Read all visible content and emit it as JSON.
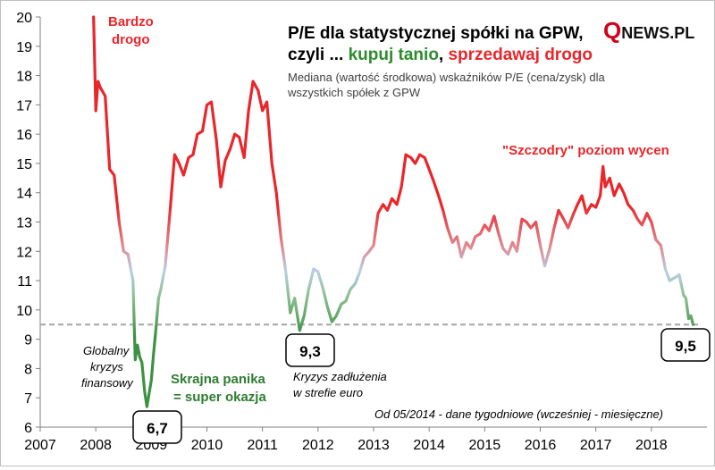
{
  "chart_data": {
    "type": "line",
    "title_line1": "P/E dla statystycznej spółki na GPW,",
    "title_line2_prefix": "czyli ... ",
    "title_line2_green": "kupuj tanio",
    "title_line2_sep": ", ",
    "title_line2_red": "sprzedawaj drogo",
    "subtitle_line1": "Mediana (wartość środkowa) wskaźników P/E (cena/zysk) dla",
    "subtitle_line2": "wszystkich spółek z GPW",
    "logo": "QNEWS.PL",
    "footnote": "Od 05/2014 - dane tygodniowe (wcześniej - miesięczne)",
    "xlabel": "",
    "ylabel": "",
    "xlim": [
      2007,
      2019
    ],
    "ylim": [
      6,
      20
    ],
    "x_ticks": [
      "2007",
      "2008",
      "2009",
      "2010",
      "2011",
      "2012",
      "2013",
      "2014",
      "2015",
      "2016",
      "2017",
      "2018"
    ],
    "y_ticks": [
      "6",
      "7",
      "8",
      "9",
      "10",
      "11",
      "12",
      "13",
      "14",
      "15",
      "16",
      "17",
      "18",
      "19",
      "20"
    ],
    "reference_line": {
      "y": 9.5,
      "style": "dashed",
      "color": "#a6a6a6"
    },
    "colors": {
      "expensive": "#e8262b",
      "neutral": "#b9cfe6",
      "cheap": "#3c9142",
      "title": "#000000",
      "logo_q": "#d0021b"
    },
    "annotations": {
      "bardzo_drogo_1": "Bardzo",
      "bardzo_drogo_2": "drogo",
      "globalny_1": "Globalny",
      "globalny_2": "kryzys",
      "globalny_3": "finansowy",
      "skrajna_1": "Skrajna panika",
      "skrajna_2": "= super okazja",
      "kryzys_1": "Kryzys zadłużenia",
      "kryzys_2": "w strefie euro",
      "szczodry": "\"Szczodry\" poziom wycen",
      "box_min_2009": "6,7",
      "box_2011": "9,3",
      "box_2018": "9,5"
    },
    "series": [
      {
        "x": [
          2007.96,
          2008.0,
          2008.04,
          2008.08,
          2008.17,
          2008.25,
          2008.33,
          2008.42,
          2008.5,
          2008.58,
          2008.67,
          2008.71,
          2008.75,
          2008.79,
          2008.83,
          2008.88,
          2008.92,
          2009.0,
          2009.04,
          2009.08,
          2009.13,
          2009.17,
          2009.25,
          2009.33,
          2009.42,
          2009.5,
          2009.58,
          2009.67,
          2009.75,
          2009.83,
          2009.92,
          2010.0,
          2010.08,
          2010.17,
          2010.25,
          2010.33,
          2010.42,
          2010.5,
          2010.58,
          2010.67,
          2010.75,
          2010.83,
          2010.92,
          2011.0,
          2011.08,
          2011.17,
          2011.25,
          2011.33,
          2011.42,
          2011.5,
          2011.58,
          2011.67,
          2011.75,
          2011.83,
          2011.92,
          2012.0,
          2012.08,
          2012.17,
          2012.25,
          2012.33,
          2012.42,
          2012.5,
          2012.58,
          2012.67,
          2012.75,
          2012.83,
          2012.92,
          2013.0,
          2013.08,
          2013.17,
          2013.25,
          2013.33,
          2013.42,
          2013.5,
          2013.58,
          2013.67,
          2013.75,
          2013.83,
          2013.92,
          2014.0,
          2014.08,
          2014.17,
          2014.25,
          2014.33,
          2014.42,
          2014.5,
          2014.58,
          2014.67,
          2014.75,
          2014.83,
          2014.92,
          2015.0,
          2015.08,
          2015.17,
          2015.25,
          2015.33,
          2015.42,
          2015.5,
          2015.58,
          2015.67,
          2015.75,
          2015.83,
          2015.92,
          2016.0,
          2016.08,
          2016.17,
          2016.25,
          2016.33,
          2016.42,
          2016.5,
          2016.58,
          2016.67,
          2016.75,
          2016.83,
          2016.92,
          2017.0,
          2017.08,
          2017.13,
          2017.17,
          2017.25,
          2017.33,
          2017.42,
          2017.5,
          2017.58,
          2017.67,
          2017.75,
          2017.83,
          2017.92,
          2018.0,
          2018.08,
          2018.17,
          2018.25,
          2018.33,
          2018.42,
          2018.5,
          2018.58,
          2018.62,
          2018.67,
          2018.71,
          2018.75
        ],
        "y": [
          20.0,
          16.8,
          17.8,
          17.6,
          17.3,
          14.8,
          14.6,
          13.0,
          12.0,
          11.9,
          11.0,
          8.3,
          8.8,
          8.4,
          8.2,
          7.2,
          6.7,
          7.6,
          8.5,
          9.3,
          10.4,
          10.7,
          11.5,
          13.2,
          15.3,
          15.0,
          14.6,
          15.2,
          15.3,
          16.0,
          16.1,
          17.0,
          17.1,
          15.8,
          14.2,
          15.1,
          15.5,
          16.0,
          15.9,
          15.2,
          16.8,
          17.8,
          17.5,
          16.8,
          17.1,
          15.0,
          14.0,
          12.5,
          11.3,
          9.9,
          10.4,
          9.3,
          9.8,
          10.7,
          11.4,
          11.3,
          10.8,
          10.1,
          9.6,
          9.8,
          10.2,
          10.3,
          10.7,
          10.9,
          11.3,
          11.8,
          12.0,
          12.2,
          13.3,
          13.6,
          13.4,
          13.8,
          13.6,
          14.2,
          15.3,
          15.2,
          15.0,
          15.3,
          15.2,
          14.8,
          14.4,
          13.9,
          13.4,
          12.8,
          12.3,
          12.5,
          11.8,
          12.3,
          12.1,
          12.5,
          12.6,
          12.9,
          12.7,
          13.2,
          12.6,
          12.1,
          11.9,
          12.3,
          12.0,
          13.1,
          13.0,
          12.8,
          13.0,
          12.2,
          11.5,
          12.1,
          12.8,
          13.4,
          13.1,
          12.8,
          13.2,
          13.6,
          13.9,
          13.3,
          13.6,
          13.5,
          13.9,
          14.9,
          14.2,
          14.5,
          13.9,
          14.3,
          14.0,
          13.6,
          13.4,
          13.1,
          12.9,
          13.3,
          13.0,
          12.4,
          12.2,
          11.4,
          11.0,
          11.1,
          11.2,
          10.5,
          10.4,
          9.7,
          9.8,
          9.5
        ]
      }
    ]
  }
}
